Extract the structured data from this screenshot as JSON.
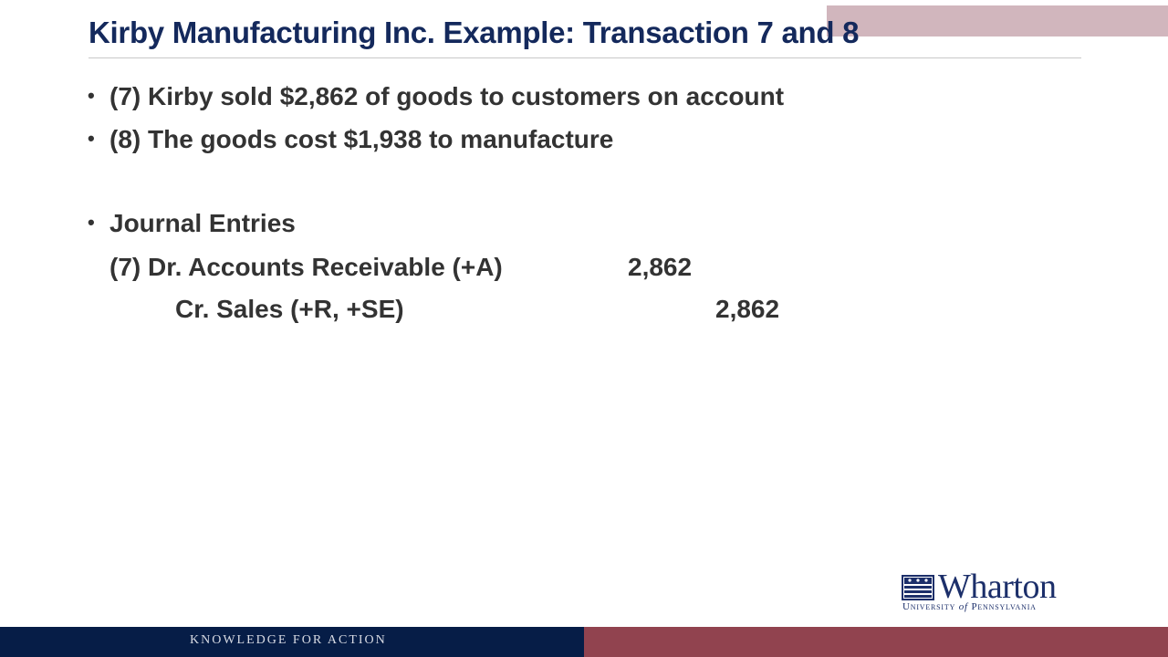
{
  "slide": {
    "title": "Kirby Manufacturing Inc. Example: Transaction 7 and 8",
    "bullets": [
      "(7) Kirby sold $2,862 of goods to customers on account",
      "(8) The goods cost $1,938 to manufacture",
      "Journal Entries"
    ],
    "journal": {
      "debit_line": {
        "account": "(7) Dr. Accounts Receivable (+A)",
        "amount": "2,862"
      },
      "credit_line": {
        "account": "Cr. Sales (+R, +SE)",
        "amount": "2,862"
      }
    }
  },
  "logo": {
    "name": "Wharton",
    "subtitle_prefix": "University",
    "subtitle_of": "of",
    "subtitle_suffix": "Pennsylvania"
  },
  "footer": {
    "tagline": "KNOWLEDGE FOR ACTION"
  },
  "colors": {
    "title": "#14295c",
    "body_text": "#333333",
    "footer_navy": "#061d47",
    "footer_maroon": "#91434f",
    "logo_blue": "#1c2f6a"
  },
  "icons": {
    "logo_mark": "wharton-shield-icon"
  }
}
